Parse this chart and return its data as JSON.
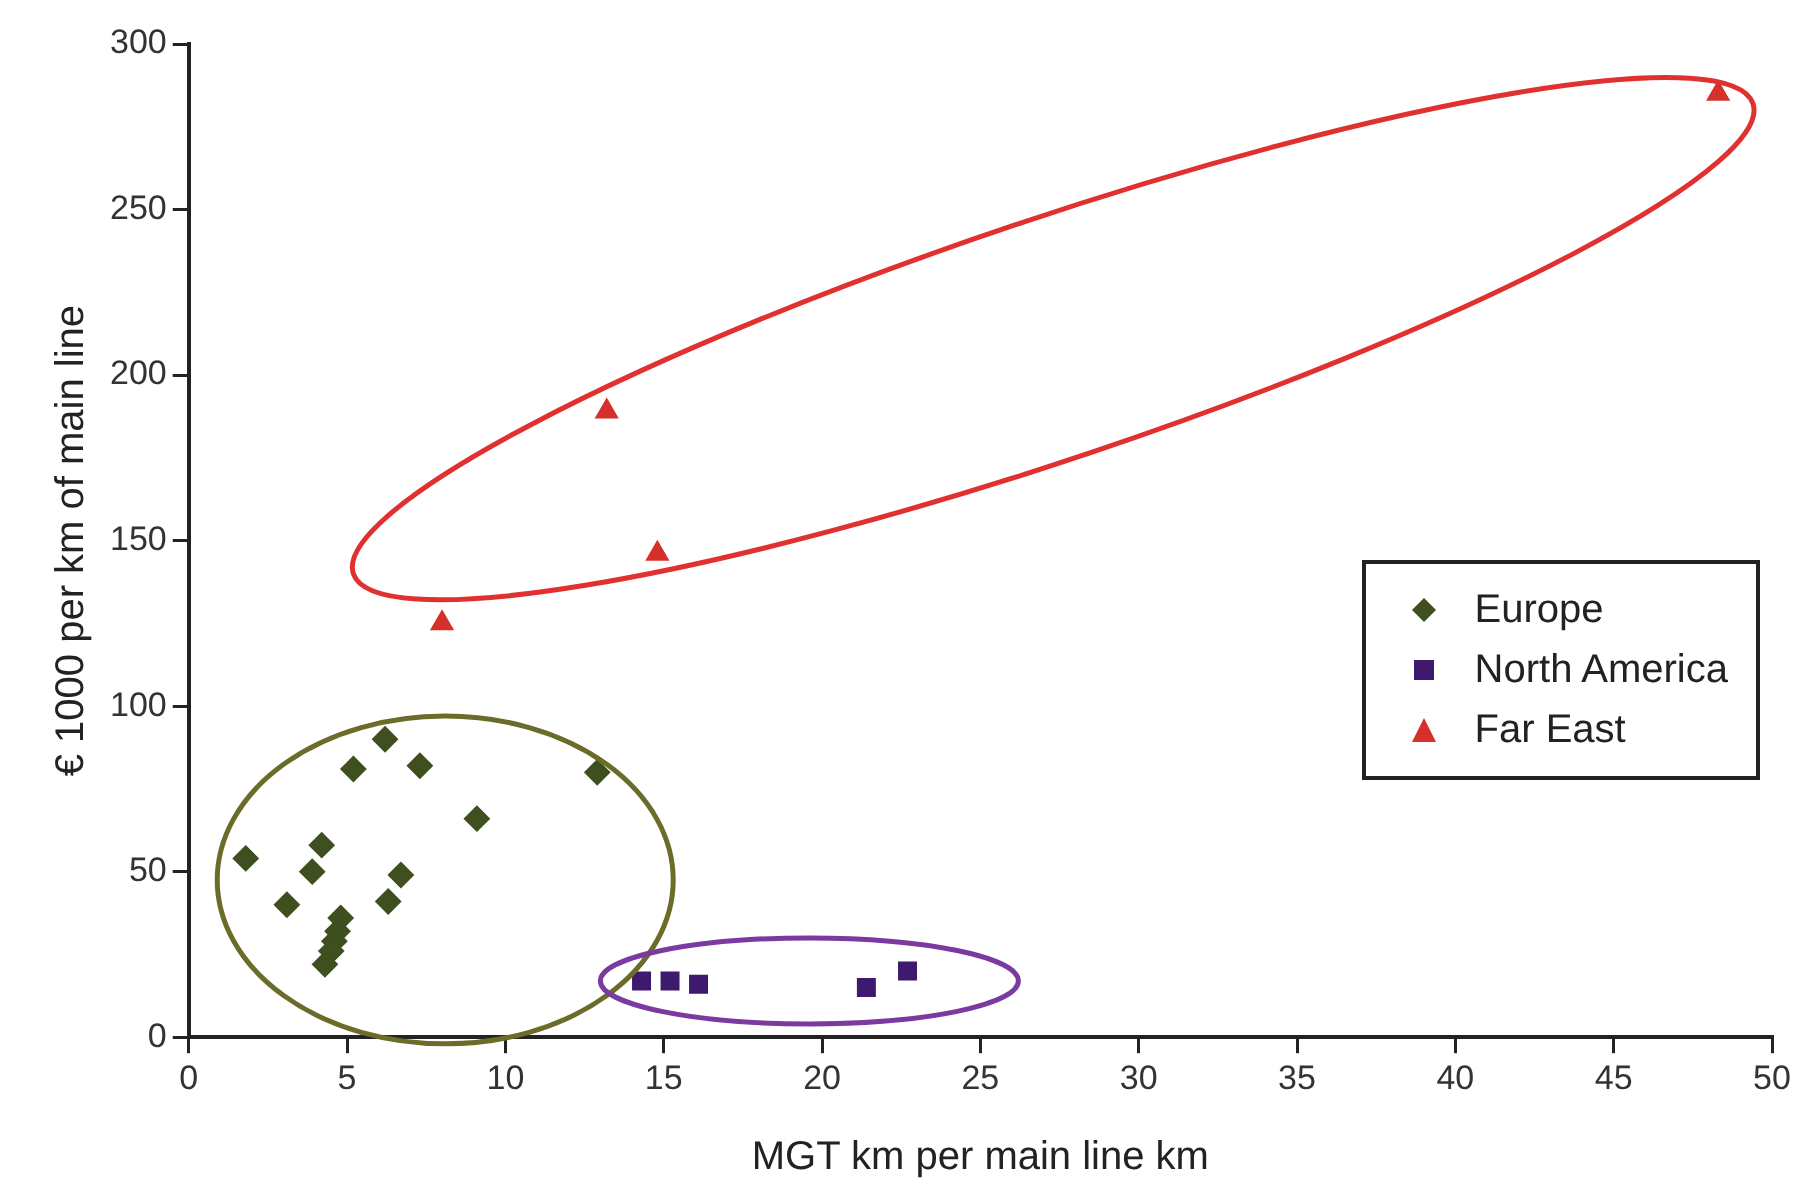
{
  "chart_data": {
    "type": "scatter",
    "xlabel": "MGT km per main line km",
    "ylabel": "€ 1000 per km of main line",
    "xlim": [
      0,
      50
    ],
    "xticks": [
      0,
      5,
      10,
      15,
      20,
      25,
      30,
      35,
      40,
      45,
      50
    ],
    "ylim": [
      0,
      300
    ],
    "yticks": [
      0,
      50,
      100,
      150,
      200,
      250,
      300
    ],
    "grid": false,
    "legend": "right",
    "series": [
      {
        "name": "Europe",
        "color": "#3f4f1f",
        "marker": "diamond",
        "x": [
          1.8,
          3.1,
          3.9,
          4.2,
          5.2,
          6.2,
          7.3,
          9.1,
          12.9,
          6.7,
          6.3,
          4.8,
          4.7,
          4.6,
          4.5,
          4.3
        ],
        "values": [
          54,
          40,
          50,
          58,
          81,
          90,
          82,
          66,
          80,
          49,
          41,
          36,
          32,
          29,
          26,
          22
        ]
      },
      {
        "name": "North America",
        "color": "#3d1a6e",
        "marker": "square",
        "x": [
          14.3,
          15.2,
          16.1,
          21.4,
          22.7
        ],
        "values": [
          17,
          17,
          16,
          15,
          20
        ]
      },
      {
        "name": "Far East",
        "color": "#d6302a",
        "marker": "triangle",
        "x": [
          8.0,
          13.2,
          14.8,
          48.3
        ],
        "values": [
          125,
          189,
          146,
          285
        ]
      }
    ]
  }
}
